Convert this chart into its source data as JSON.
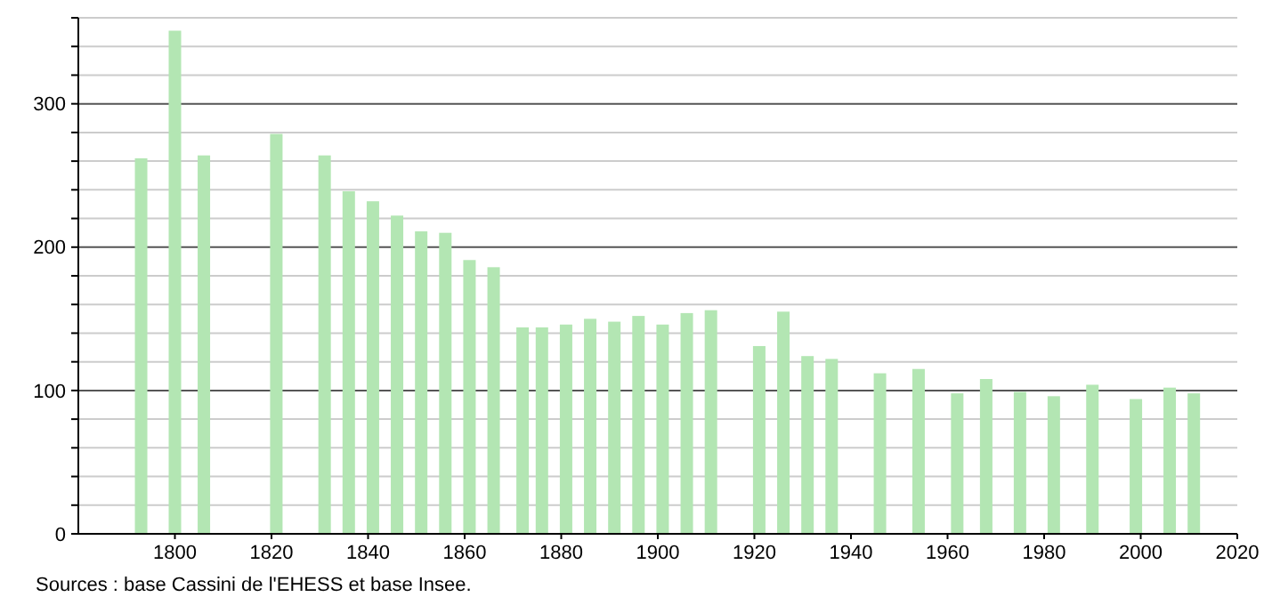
{
  "chart_data": {
    "type": "bar",
    "x": [
      1793,
      1800,
      1806,
      1821,
      1831,
      1836,
      1841,
      1846,
      1851,
      1856,
      1861,
      1866,
      1872,
      1876,
      1881,
      1886,
      1891,
      1896,
      1901,
      1906,
      1911,
      1921,
      1926,
      1931,
      1936,
      1946,
      1954,
      1962,
      1968,
      1975,
      1982,
      1990,
      1999,
      2006,
      2011
    ],
    "values": [
      262,
      351,
      264,
      279,
      264,
      239,
      232,
      222,
      211,
      210,
      191,
      186,
      144,
      144,
      146,
      150,
      148,
      152,
      146,
      154,
      156,
      131,
      155,
      124,
      122,
      112,
      115,
      98,
      108,
      99,
      96,
      104,
      94,
      102,
      98
    ],
    "color": "#b3e6b3",
    "xlim": [
      1780,
      2020
    ],
    "xticks": [
      1800,
      1820,
      1840,
      1860,
      1880,
      1900,
      1920,
      1940,
      1960,
      1980,
      2000,
      2020
    ],
    "ylim": [
      0,
      360
    ],
    "yticks": [
      0,
      {
        "value": 20,
        "label": null
      },
      {
        "value": 40,
        "label": null
      },
      {
        "value": 60,
        "label": null
      },
      {
        "value": 80,
        "label": null
      },
      100,
      {
        "value": 120,
        "label": null
      },
      {
        "value": 140,
        "label": null
      },
      {
        "value": 160,
        "label": null
      },
      {
        "value": 180,
        "label": null
      },
      200,
      {
        "value": 220,
        "label": null
      },
      {
        "value": 240,
        "label": null
      },
      {
        "value": 260,
        "label": null
      },
      {
        "value": 280,
        "label": null
      },
      300,
      {
        "value": 320,
        "label": null
      },
      {
        "value": 340,
        "label": null
      },
      {
        "value": 360,
        "label": null
      }
    ],
    "grid": true,
    "annotations": [
      "Sources : base Cassini de l'EHESS et base Insee."
    ]
  }
}
